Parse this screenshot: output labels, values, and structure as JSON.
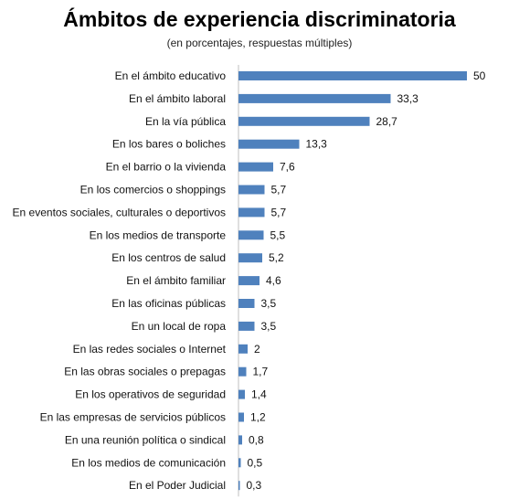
{
  "chart_data": {
    "type": "bar",
    "orientation": "horizontal",
    "title": "Ámbitos de experiencia discriminatoria",
    "subtitle": "(en porcentajes, respuestas múltiples)",
    "categories": [
      "En el ámbito educativo",
      "En el ámbito laboral",
      "En la vía pública",
      "En los bares o boliches",
      "En el barrio o la vivienda",
      "En los comercios o shoppings",
      "En eventos sociales, culturales o deportivos",
      "En los medios de transporte",
      "En los centros de salud",
      "En el ámbito familiar",
      "En las oficinas públicas",
      "En un local de ropa",
      "En las redes sociales o Internet",
      "En las obras sociales o prepagas",
      "En los operativos de seguridad",
      "En las empresas de servicios públicos",
      "En una reunión política o sindical",
      "En los medios de comunicación",
      "En el Poder Judicial"
    ],
    "values": [
      50,
      33.3,
      28.7,
      13.3,
      7.6,
      5.7,
      5.7,
      5.5,
      5.2,
      4.6,
      3.5,
      3.5,
      2,
      1.7,
      1.4,
      1.2,
      0.8,
      0.5,
      0.3
    ],
    "value_labels": [
      "50",
      "33,3",
      "28,7",
      "13,3",
      "7,6",
      "5,7",
      "5,7",
      "5,5",
      "5,2",
      "4,6",
      "3,5",
      "3,5",
      "2",
      "1,7",
      "1,4",
      "1,2",
      "0,8",
      "0,5",
      "0,3"
    ],
    "xlim": [
      0,
      50
    ],
    "bar_color": "#4f81bd",
    "grid": false,
    "legend": "none"
  }
}
